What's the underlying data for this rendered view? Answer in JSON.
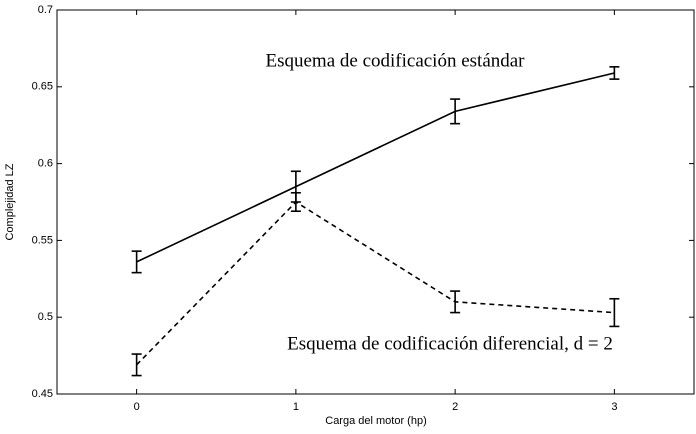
{
  "chart_data": {
    "type": "line",
    "x_label": "Carga del motor (hp)",
    "y_label": "Complejidad LZ",
    "x": [
      0,
      1,
      2,
      3
    ],
    "xlim": [
      -0.5,
      3.5
    ],
    "xticks": [
      0,
      1,
      2,
      3
    ],
    "ylim": [
      0.45,
      0.7
    ],
    "yticks": [
      0.45,
      0.5,
      0.55,
      0.6,
      0.65,
      0.7
    ],
    "series": [
      {
        "name": "Esquema de codificación estándar",
        "color": "#000000",
        "dash": false,
        "values": [
          0.536,
          0.585,
          0.634,
          0.659
        ],
        "errors": [
          0.007,
          0.01,
          0.008,
          0.004
        ]
      },
      {
        "name": "Esquema de codificación diferencial, d = 2",
        "color": "#000000",
        "dash": true,
        "values": [
          0.469,
          0.575,
          0.51,
          0.503
        ],
        "errors": [
          0.007,
          0.006,
          0.007,
          0.009
        ]
      }
    ]
  }
}
